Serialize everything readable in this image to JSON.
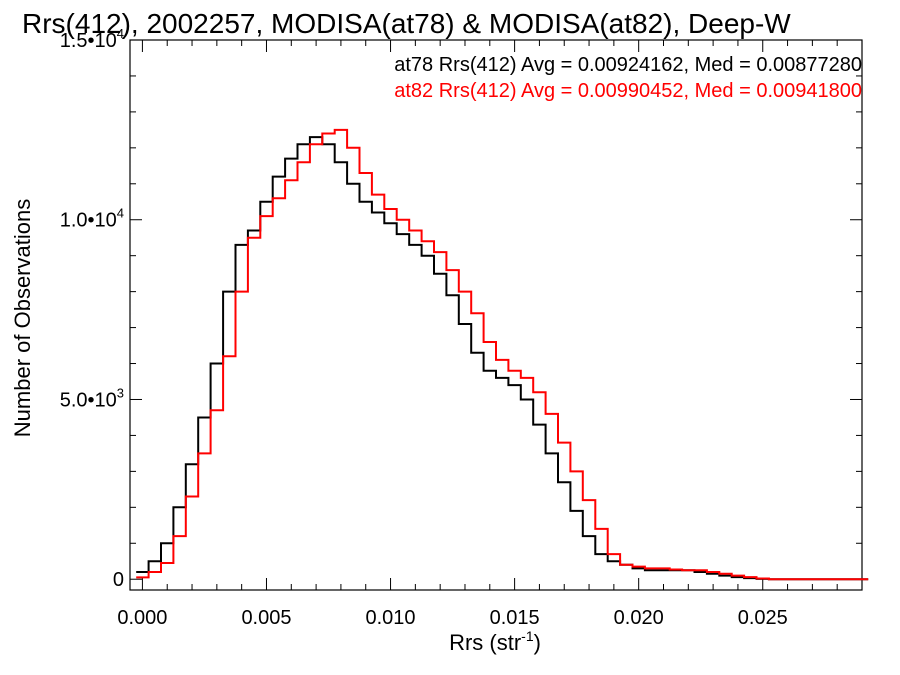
{
  "chart_data": {
    "type": "line",
    "title": "Rrs(412), 2002257, MODISA(at78) & MODISA(at82), Deep-W",
    "xlabel": "Rrs (str",
    "xlabel_sup": "-1",
    "xlabel_close": ")",
    "ylabel": "Number of Observations",
    "xlim": [
      -0.0005,
      0.029
    ],
    "ylim": [
      -300,
      15000
    ],
    "x_ticks": [
      {
        "value": 0.0,
        "label": "0.000"
      },
      {
        "value": 0.005,
        "label": "0.005"
      },
      {
        "value": 0.01,
        "label": "0.010"
      },
      {
        "value": 0.015,
        "label": "0.015"
      },
      {
        "value": 0.02,
        "label": "0.020"
      },
      {
        "value": 0.025,
        "label": "0.025"
      }
    ],
    "y_ticks": [
      {
        "value": 0,
        "mantissa": "0",
        "exp": ""
      },
      {
        "value": 5000,
        "mantissa": "5.0•10",
        "exp": "3"
      },
      {
        "value": 10000,
        "mantissa": "1.0•10",
        "exp": "4"
      },
      {
        "value": 15000,
        "mantissa": "1.5•10",
        "exp": "4"
      }
    ],
    "annotations": [
      "at78 Rrs(412) Avg = 0.00924162, Med = 0.00877280",
      "at82 Rrs(412) Avg = 0.00990452, Med = 0.00941800"
    ],
    "series": [
      {
        "name": "at78",
        "color": "#000000",
        "x": [
          0.0,
          0.0005,
          0.001,
          0.0015,
          0.002,
          0.0025,
          0.003,
          0.0035,
          0.004,
          0.0045,
          0.005,
          0.0055,
          0.006,
          0.0065,
          0.007,
          0.0075,
          0.008,
          0.0085,
          0.009,
          0.0095,
          0.01,
          0.0105,
          0.011,
          0.0115,
          0.012,
          0.0125,
          0.013,
          0.0135,
          0.014,
          0.0145,
          0.015,
          0.0155,
          0.016,
          0.0165,
          0.017,
          0.0175,
          0.018,
          0.0185,
          0.019,
          0.0195,
          0.02,
          0.0205,
          0.021,
          0.0215,
          0.022,
          0.0225,
          0.023,
          0.0235,
          0.024,
          0.0245,
          0.025,
          0.0255,
          0.026,
          0.027,
          0.028,
          0.029
        ],
        "y": [
          200,
          500,
          1000,
          2000,
          3200,
          4500,
          6000,
          8000,
          9300,
          9700,
          10500,
          11200,
          11700,
          12100,
          12300,
          12100,
          11600,
          11000,
          10500,
          10200,
          9900,
          9600,
          9300,
          9000,
          8500,
          7900,
          7100,
          6300,
          5800,
          5600,
          5400,
          5000,
          4300,
          3500,
          2700,
          1900,
          1200,
          700,
          500,
          400,
          300,
          250,
          250,
          250,
          250,
          200,
          150,
          100,
          60,
          30,
          10,
          0,
          0,
          0,
          0,
          0
        ]
      },
      {
        "name": "at82",
        "color": "#ff0000",
        "x": [
          0.0,
          0.0005,
          0.001,
          0.0015,
          0.002,
          0.0025,
          0.003,
          0.0035,
          0.004,
          0.0045,
          0.005,
          0.0055,
          0.006,
          0.0065,
          0.007,
          0.0075,
          0.008,
          0.0085,
          0.009,
          0.0095,
          0.01,
          0.0105,
          0.011,
          0.0115,
          0.012,
          0.0125,
          0.013,
          0.0135,
          0.014,
          0.0145,
          0.015,
          0.0155,
          0.016,
          0.0165,
          0.017,
          0.0175,
          0.018,
          0.0185,
          0.019,
          0.0195,
          0.02,
          0.0205,
          0.021,
          0.0215,
          0.022,
          0.0225,
          0.023,
          0.0235,
          0.024,
          0.0245,
          0.025,
          0.0255,
          0.026,
          0.027,
          0.028,
          0.029
        ],
        "y": [
          50,
          200,
          450,
          1200,
          2300,
          3500,
          4700,
          6200,
          8000,
          9500,
          10100,
          10600,
          11100,
          11600,
          12100,
          12400,
          12500,
          12000,
          11300,
          10700,
          10300,
          10000,
          9700,
          9400,
          9100,
          8600,
          8000,
          7400,
          6600,
          6100,
          5800,
          5600,
          5200,
          4600,
          3800,
          3000,
          2200,
          1400,
          700,
          400,
          350,
          300,
          300,
          270,
          250,
          250,
          200,
          150,
          100,
          60,
          20,
          0,
          0,
          0,
          0,
          0
        ]
      }
    ],
    "grid": false,
    "legend": "none"
  }
}
